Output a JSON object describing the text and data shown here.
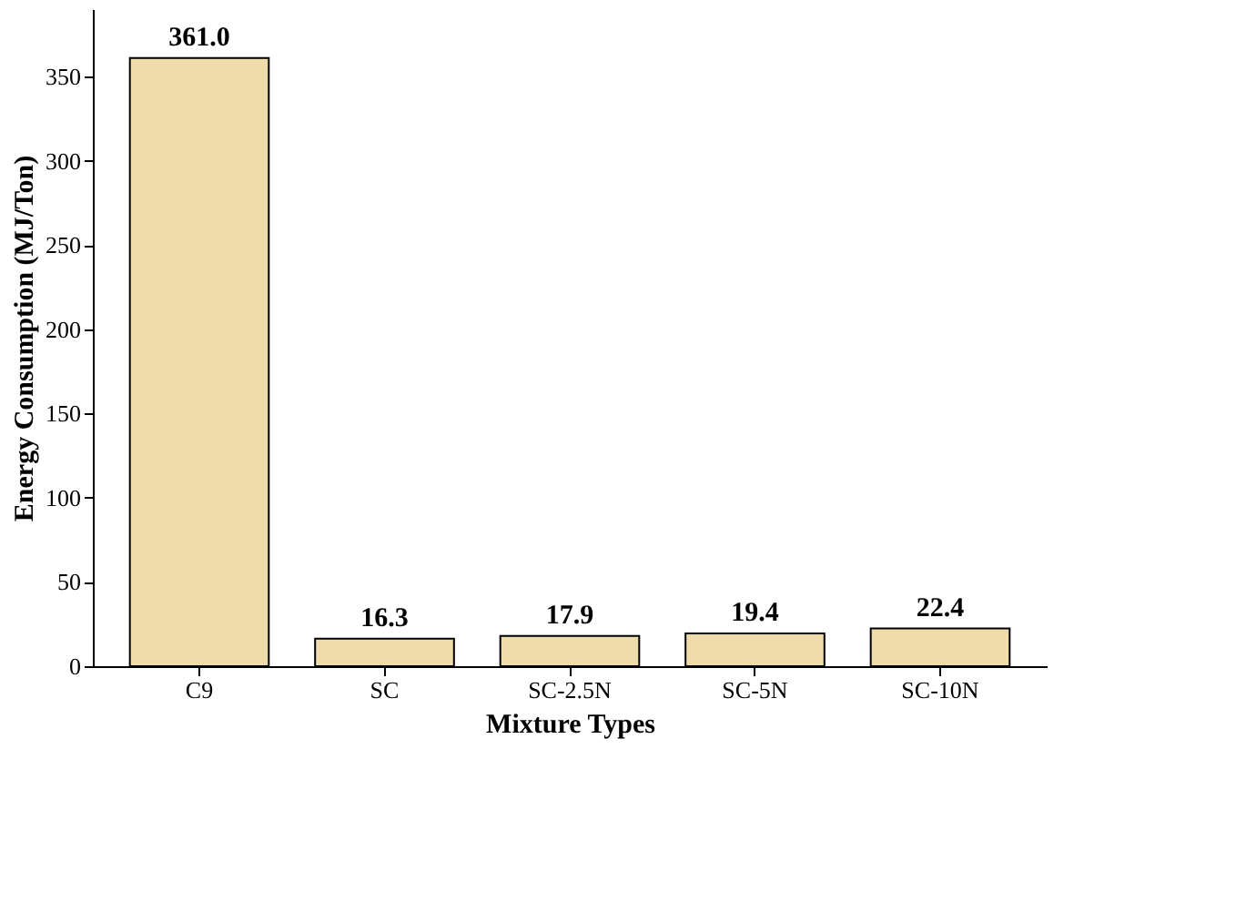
{
  "chart_data": {
    "type": "bar",
    "xlabel": "Mixture Types",
    "ylabel": "Energy Consumption (MJ/Ton)",
    "categories": [
      "C9",
      "SC",
      "SC-2.5N",
      "SC-5N",
      "SC-10N"
    ],
    "values": [
      361.0,
      16.3,
      17.9,
      19.4,
      22.4
    ],
    "value_labels": [
      "361.0",
      "16.3",
      "17.9",
      "19.4",
      "22.4"
    ],
    "color": "#eedcaa",
    "ylim": [
      0,
      390
    ],
    "yticks": [
      0,
      50,
      100,
      150,
      200,
      250,
      300,
      350
    ],
    "grid": false
  }
}
